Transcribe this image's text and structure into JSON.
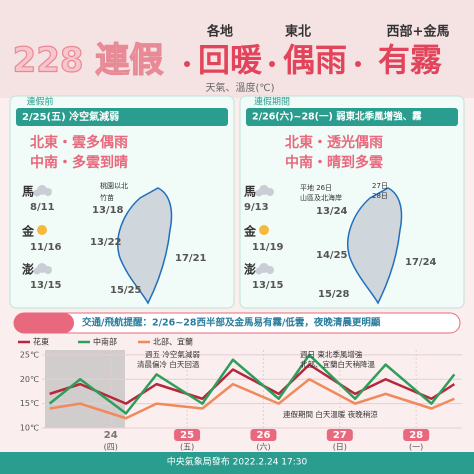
{
  "title": {
    "main": "228 連假",
    "parts": [
      {
        "small": "各地",
        "big": "回暖"
      },
      {
        "small": "東北",
        "big": "偶雨"
      },
      {
        "small": "西部+金馬",
        "big": "有霧"
      }
    ],
    "subtitle": "天氣、溫度(℃)"
  },
  "panels": [
    {
      "tag": "連假前",
      "header": "2/25(五) 冷空氣減弱",
      "lines": [
        "北東・雲多偶雨",
        "中南・多雲到晴"
      ],
      "islands": [
        {
          "name": "馬",
          "temp": "8/11"
        },
        {
          "name": "金",
          "temp": "11/16"
        },
        {
          "name": "澎",
          "temp": "13/15"
        }
      ],
      "map_labels": [
        "桃園以北",
        "竹苗"
      ],
      "map_temps": [
        "13/18",
        "13/22",
        "17/21",
        "15/25"
      ]
    },
    {
      "tag": "連假期間",
      "header": "2/26(六)~28(一) 弱東北季風增強、霧",
      "lines": [
        "北東・透光偶雨",
        "中南・晴到多雲"
      ],
      "islands": [
        {
          "name": "馬",
          "temp": "9/13"
        },
        {
          "name": "金",
          "temp": "11/19"
        },
        {
          "name": "澎",
          "temp": "13/15"
        }
      ],
      "map_labels": [
        "平地 26日",
        "山區及北海岸",
        "27日",
        "28日"
      ],
      "map_temps": [
        "13/24",
        "14/25",
        "17/24",
        "15/28"
      ]
    }
  ],
  "notice": "交通/飛航提醒：2/26~28西半部及金馬易有霧/低雲，夜晚清晨更明顯",
  "chart": {
    "type": "line",
    "x": [
      23.2,
      23.6,
      24.2,
      24.6,
      25.2,
      25.6,
      26.2,
      26.6,
      27.2,
      27.6,
      28.2,
      28.5
    ],
    "series": [
      {
        "name": "花東",
        "color": "#b5283c",
        "values": [
          17,
          19,
          15,
          19,
          16,
          22,
          17,
          23,
          17,
          20,
          16,
          19
        ]
      },
      {
        "name": "中南部",
        "color": "#2e9e5a",
        "values": [
          15,
          20,
          13,
          21,
          15,
          24,
          16,
          25,
          16,
          23,
          15,
          21
        ]
      },
      {
        "name": "北部、宜蘭",
        "color": "#f08a5d",
        "values": [
          14,
          15,
          12,
          15,
          14,
          19,
          15,
          20,
          15,
          17,
          14,
          16
        ]
      }
    ],
    "xlim": [
      23.1,
      28.6
    ],
    "ylim": [
      10,
      26
    ],
    "yticks": [
      {
        "value": 10,
        "label": "10℃"
      },
      {
        "value": 15,
        "label": "15℃"
      },
      {
        "value": 20,
        "label": "20℃"
      },
      {
        "value": 25,
        "label": "25℃"
      }
    ],
    "xticks": [
      24,
      25,
      26,
      27,
      28
    ],
    "weekdays": [
      "(四)",
      "(五)",
      "(六)",
      "(日)",
      "(一)"
    ],
    "annotations": [
      "週五 冷空氣減弱",
      "清晨偏冷 白天回溫",
      "週日 東北季風增強",
      "北部、宜蘭白天稍降溫",
      "連假期間 白天溫暖 夜晚稍涼"
    ]
  },
  "footer": "中央氣象局發布 2022.2.24 17:30"
}
